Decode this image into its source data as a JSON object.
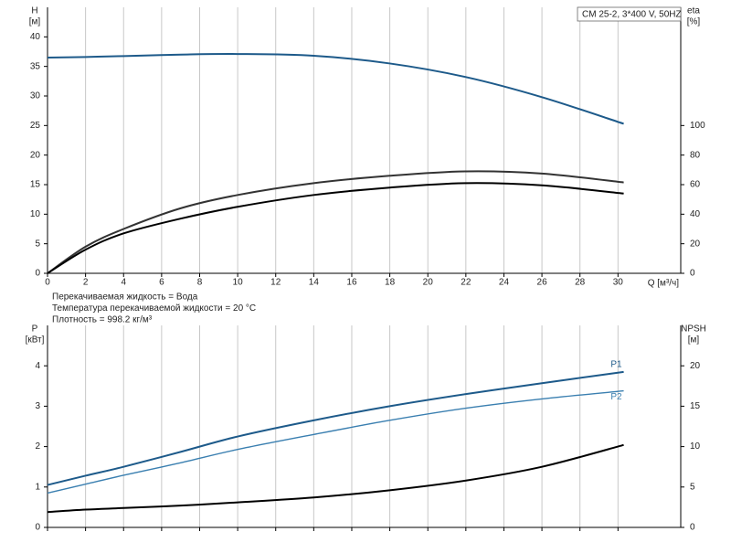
{
  "chart_data": [
    {
      "type": "line",
      "ylabel": "H",
      "yunit": "[м]",
      "y2label": "eta",
      "y2unit": "[%]",
      "xlabel": "Q [м³/ч]",
      "legend_title": "CM 25-2, 3*400 V, 50HZ",
      "annotations": [
        "Перекачиваемая жидкость = Вода",
        "Температура перекачиваемой жидкости = 20 °C",
        "Плотность = 998.2 кг/м³"
      ],
      "x": [
        0,
        2,
        4,
        7,
        10,
        14,
        18,
        22,
        26,
        30.3
      ],
      "xlim": [
        0,
        33.3
      ],
      "xticks": [
        0,
        2,
        4,
        6,
        8,
        10,
        12,
        14,
        16,
        18,
        20,
        22,
        24,
        26,
        28,
        30
      ],
      "ylim": [
        0,
        45
      ],
      "yticks": [
        0,
        5,
        10,
        15,
        20,
        25,
        30,
        35,
        40
      ],
      "y2lim": [
        0,
        180
      ],
      "y2ticks": [
        0,
        20,
        40,
        60,
        80,
        100
      ],
      "grid": "x",
      "show_xtick_labels": true,
      "series": [
        {
          "color": "#1d5a8a",
          "values": [
            36.5,
            36.6,
            36.75,
            37.0,
            37.1,
            36.8,
            35.5,
            33.2,
            29.8,
            25.3
          ]
        },
        {
          "color": "#333333",
          "axis": "y2",
          "values": [
            0,
            18,
            30,
            44,
            53,
            61,
            66,
            69,
            67.5,
            61.5
          ]
        },
        {
          "color": "#000000",
          "axis": "y2",
          "values": [
            0,
            16,
            27,
            37,
            45,
            53,
            58,
            61,
            59.5,
            54
          ]
        }
      ]
    },
    {
      "type": "line",
      "ylabel": "P",
      "yunit": "[кВт]",
      "y2label": "NPSH",
      "y2unit": "[м]",
      "x": [
        0,
        2,
        4,
        7,
        10,
        14,
        18,
        22,
        26,
        30.3
      ],
      "xlim": [
        0,
        33.3
      ],
      "xticks": [
        0,
        2,
        4,
        6,
        8,
        10,
        12,
        14,
        16,
        18,
        20,
        22,
        24,
        26,
        28,
        30
      ],
      "ylim": [
        0,
        5
      ],
      "yticks": [
        0,
        1,
        2,
        3,
        4
      ],
      "y2lim": [
        0,
        25
      ],
      "y2ticks": [
        0,
        5,
        10,
        15,
        20
      ],
      "grid": "x",
      "show_xtick_labels": false,
      "series": [
        {
          "name": "P1",
          "color": "#1d5a8a",
          "values": [
            1.05,
            1.28,
            1.5,
            1.87,
            2.25,
            2.65,
            3.0,
            3.3,
            3.57,
            3.85
          ]
        },
        {
          "name": "P2",
          "color": "#3a7fb0",
          "values": [
            0.85,
            1.07,
            1.29,
            1.6,
            1.93,
            2.3,
            2.65,
            2.95,
            3.18,
            3.38
          ]
        },
        {
          "color": "#000000",
          "axis": "y2",
          "values": [
            1.9,
            2.2,
            2.4,
            2.7,
            3.1,
            3.7,
            4.6,
            5.8,
            7.5,
            10.2
          ]
        }
      ]
    }
  ]
}
